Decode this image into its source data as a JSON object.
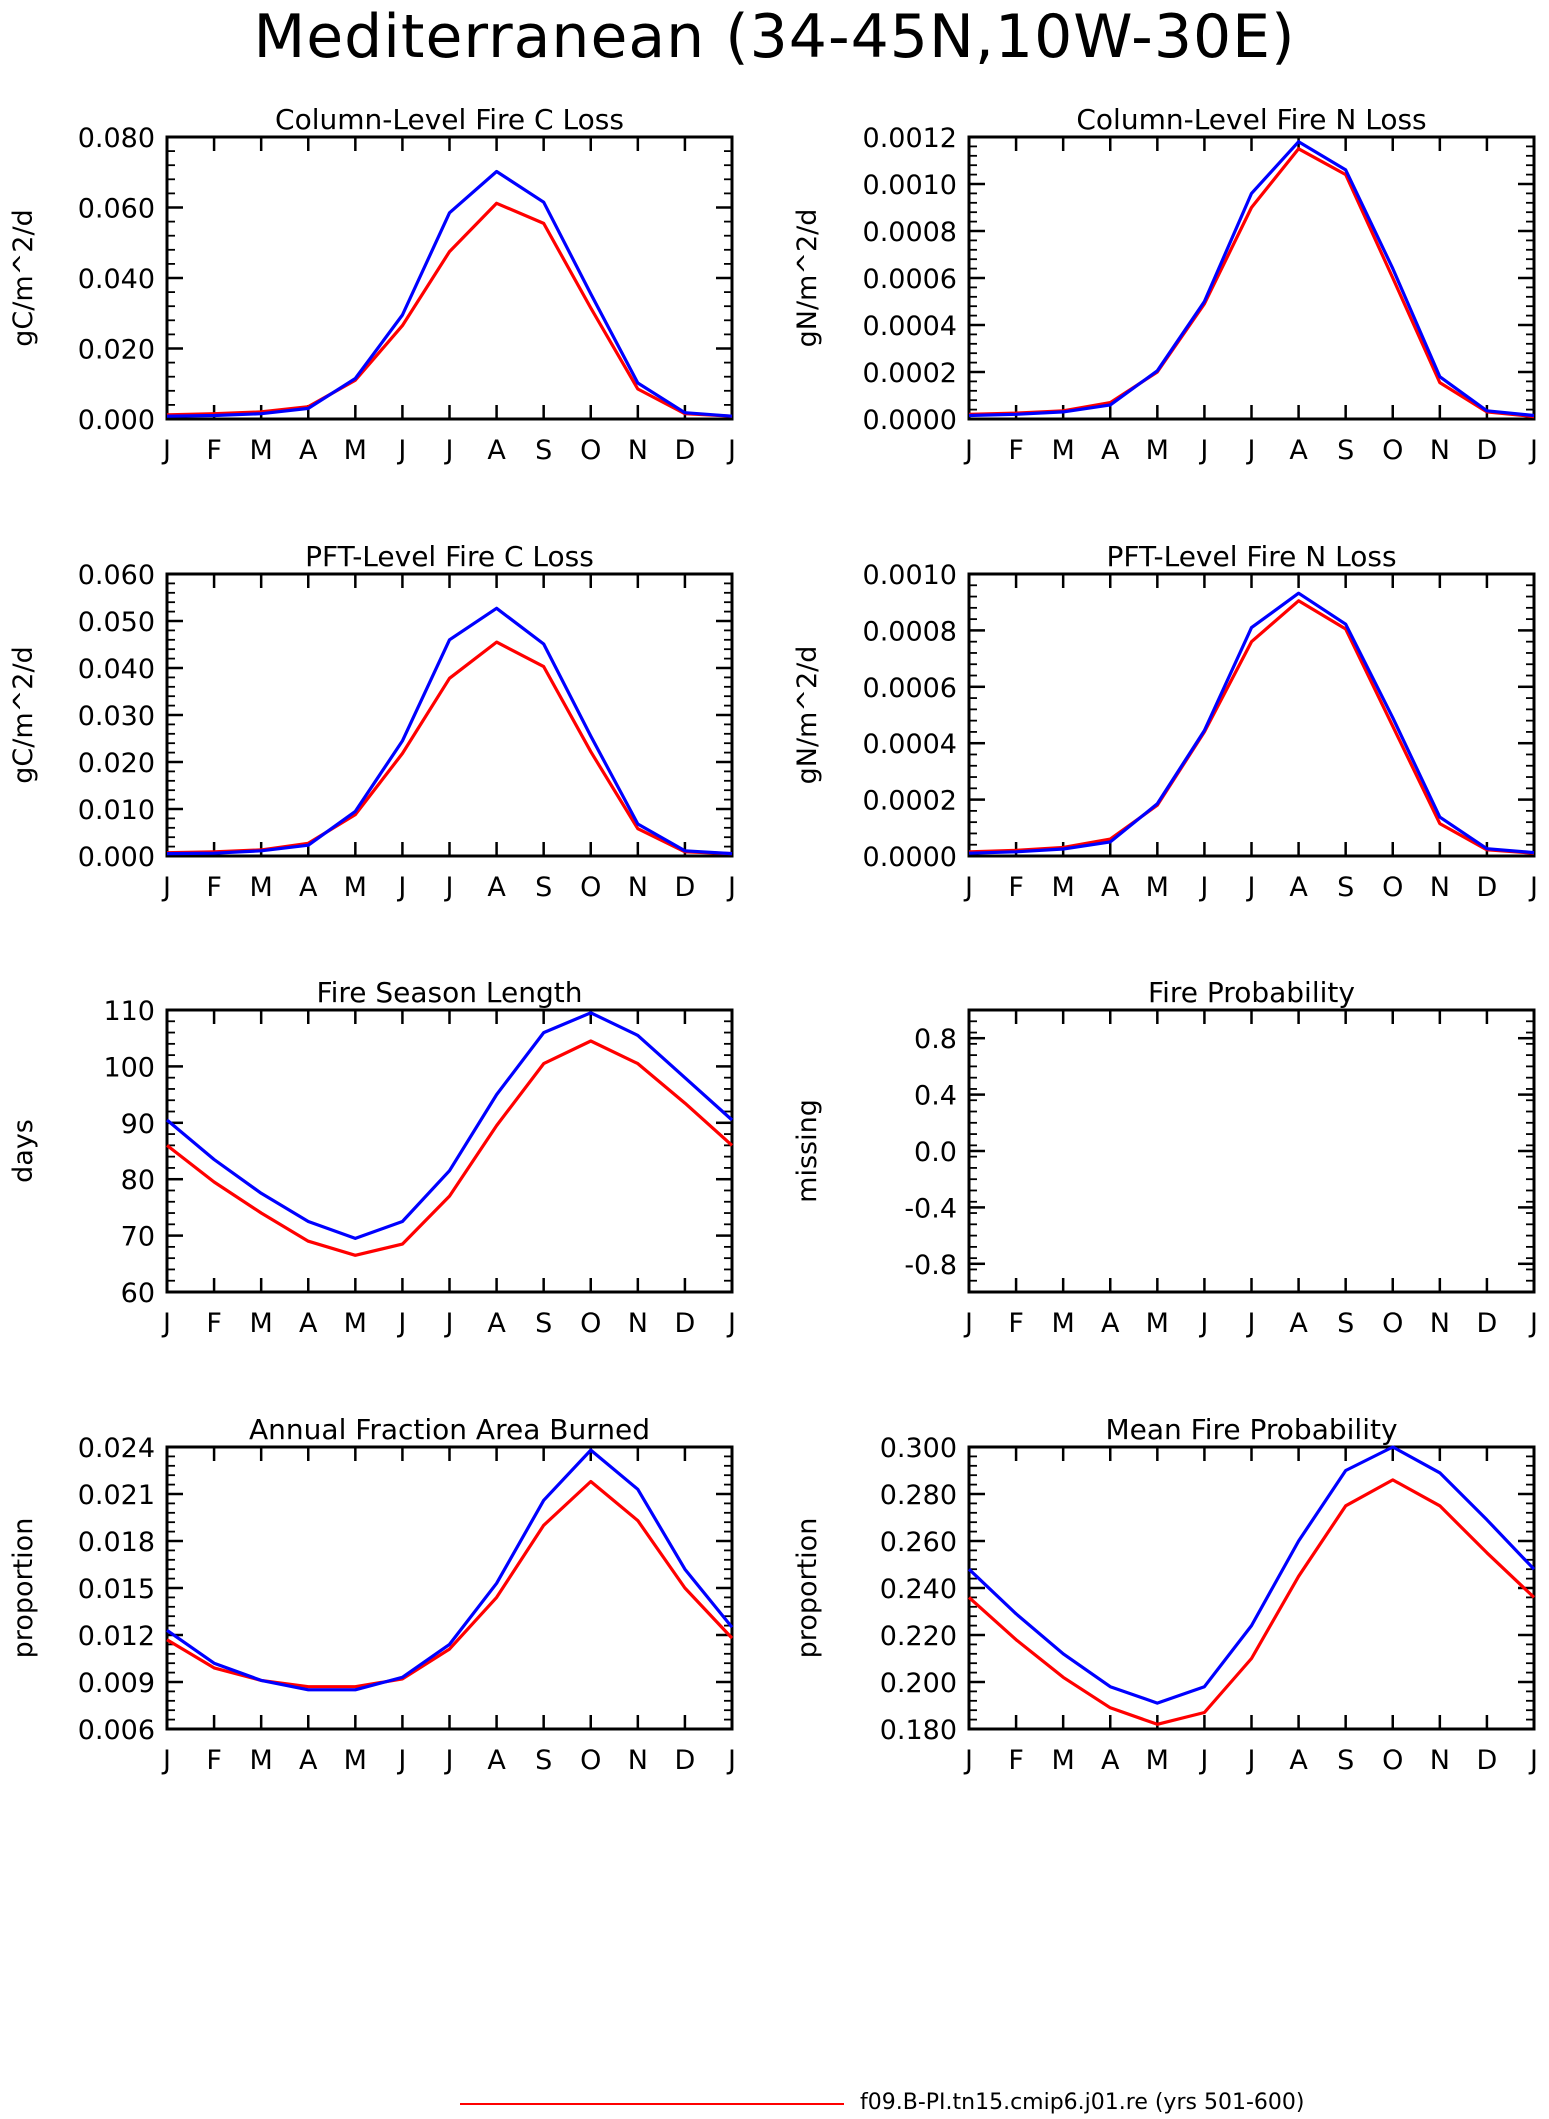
{
  "title": "Mediterranean (34-45N,10W-30E)",
  "legend": {
    "label": "f09.B-PI.tn15.cmip6.j01.re (yrs 501-600)",
    "color": "#ff0000"
  },
  "colors": {
    "red": "#ff0000",
    "blue": "#0000ff"
  },
  "chart_data": [
    {
      "type": "line",
      "title": "Column-Level Fire C Loss",
      "ylabel": "gC/m^2/d",
      "xlabel": "",
      "categories": [
        "J",
        "F",
        "M",
        "A",
        "M",
        "J",
        "J",
        "A",
        "S",
        "O",
        "N",
        "D",
        "J"
      ],
      "ylim": [
        0,
        0.08
      ],
      "yticks": [
        "0.000",
        "0.020",
        "0.040",
        "0.060",
        "0.080"
      ],
      "series": [
        {
          "color": "#ff0000",
          "values": [
            0.0012,
            0.0015,
            0.002,
            0.0035,
            0.011,
            0.0265,
            0.0475,
            0.0612,
            0.0555,
            0.0315,
            0.0085,
            0.0015,
            0.0008
          ]
        },
        {
          "color": "#0000ff",
          "values": [
            0.0008,
            0.001,
            0.0015,
            0.003,
            0.0115,
            0.0295,
            0.0585,
            0.0702,
            0.0615,
            0.0355,
            0.0102,
            0.0018,
            0.0008
          ]
        }
      ]
    },
    {
      "type": "line",
      "title": "Column-Level Fire N Loss",
      "ylabel": "gN/m^2/d",
      "xlabel": "",
      "categories": [
        "J",
        "F",
        "M",
        "A",
        "M",
        "J",
        "J",
        "A",
        "S",
        "O",
        "N",
        "D",
        "J"
      ],
      "ylim": [
        0,
        0.0012
      ],
      "yticks": [
        "0.0000",
        "0.0002",
        "0.0004",
        "0.0006",
        "0.0008",
        "0.0010",
        "0.0012"
      ],
      "series": [
        {
          "color": "#ff0000",
          "values": [
            2e-05,
            2.5e-05,
            3.5e-05,
            7e-05,
            0.0002,
            0.00049,
            0.0009,
            0.00115,
            0.00104,
            0.0006,
            0.000155,
            3e-05,
            1e-05
          ]
        },
        {
          "color": "#0000ff",
          "values": [
            1.5e-05,
            2e-05,
            3e-05,
            6e-05,
            0.000205,
            0.0005,
            0.00096,
            0.00118,
            0.00106,
            0.00064,
            0.00018,
            3.5e-05,
            1.5e-05
          ]
        }
      ]
    },
    {
      "type": "line",
      "title": "PFT-Level Fire C Loss",
      "ylabel": "gC/m^2/d",
      "xlabel": "",
      "categories": [
        "J",
        "F",
        "M",
        "A",
        "M",
        "J",
        "J",
        "A",
        "S",
        "O",
        "N",
        "D",
        "J"
      ],
      "ylim": [
        0,
        0.06
      ],
      "yticks": [
        "0.000",
        "0.010",
        "0.020",
        "0.030",
        "0.040",
        "0.050",
        "0.060"
      ],
      "series": [
        {
          "color": "#ff0000",
          "values": [
            0.0007,
            0.0009,
            0.0013,
            0.0027,
            0.0088,
            0.0218,
            0.0378,
            0.0455,
            0.0403,
            0.0222,
            0.0058,
            0.0009,
            0.0005
          ]
        },
        {
          "color": "#0000ff",
          "values": [
            0.0005,
            0.0006,
            0.0011,
            0.0023,
            0.0095,
            0.0245,
            0.046,
            0.0527,
            0.0451,
            0.0255,
            0.0068,
            0.0011,
            0.0005
          ]
        }
      ]
    },
    {
      "type": "line",
      "title": "PFT-Level Fire N Loss",
      "ylabel": "gN/m^2/d",
      "xlabel": "",
      "categories": [
        "J",
        "F",
        "M",
        "A",
        "M",
        "J",
        "J",
        "A",
        "S",
        "O",
        "N",
        "D",
        "J"
      ],
      "ylim": [
        0,
        0.001
      ],
      "yticks": [
        "0.0000",
        "0.0002",
        "0.0004",
        "0.0006",
        "0.0008",
        "0.0010"
      ],
      "series": [
        {
          "color": "#ff0000",
          "values": [
            1.5e-05,
            2e-05,
            3e-05,
            6e-05,
            0.00018,
            0.00044,
            0.00076,
            0.000905,
            0.000805,
            0.00046,
            0.000115,
            2.2e-05,
            1e-05
          ]
        },
        {
          "color": "#0000ff",
          "values": [
            1e-05,
            1.5e-05,
            2.5e-05,
            5e-05,
            0.000185,
            0.000445,
            0.00081,
            0.000932,
            0.000822,
            0.00049,
            0.000138,
            2.6e-05,
            1.2e-05
          ]
        }
      ]
    },
    {
      "type": "line",
      "title": "Fire Season Length",
      "ylabel": "days",
      "xlabel": "",
      "categories": [
        "J",
        "F",
        "M",
        "A",
        "M",
        "J",
        "J",
        "A",
        "S",
        "O",
        "N",
        "D",
        "J"
      ],
      "ylim": [
        60,
        110
      ],
      "yticks": [
        "60",
        "70",
        "80",
        "90",
        "100",
        "110"
      ],
      "series": [
        {
          "color": "#ff0000",
          "values": [
            86,
            79.5,
            74,
            69,
            66.5,
            68.5,
            77,
            89.5,
            100.5,
            104.5,
            100.5,
            93.5,
            86
          ]
        },
        {
          "color": "#0000ff",
          "values": [
            90.5,
            83.5,
            77.5,
            72.5,
            69.5,
            72.5,
            81.5,
            95,
            106,
            109.5,
            105.5,
            98,
            90.5
          ]
        }
      ]
    },
    {
      "type": "line",
      "title": "Fire Probability",
      "ylabel": "missing",
      "xlabel": "",
      "categories": [
        "J",
        "F",
        "M",
        "A",
        "M",
        "J",
        "J",
        "A",
        "S",
        "O",
        "N",
        "D",
        "J"
      ],
      "ylim": [
        -1,
        1
      ],
      "yticks": [
        "-0.8",
        "-0.4",
        "0.0",
        "0.4",
        "0.8"
      ],
      "series": []
    },
    {
      "type": "line",
      "title": "Annual Fraction Area Burned",
      "ylabel": "proportion",
      "xlabel": "",
      "categories": [
        "J",
        "F",
        "M",
        "A",
        "M",
        "J",
        "J",
        "A",
        "S",
        "O",
        "N",
        "D",
        "J"
      ],
      "ylim": [
        0.006,
        0.024
      ],
      "yticks": [
        "0.006",
        "0.009",
        "0.012",
        "0.015",
        "0.018",
        "0.021",
        "0.024"
      ],
      "series": [
        {
          "color": "#ff0000",
          "values": [
            0.0117,
            0.0099,
            0.0091,
            0.0087,
            0.0087,
            0.0092,
            0.0111,
            0.0144,
            0.019,
            0.0218,
            0.0193,
            0.015,
            0.0118
          ]
        },
        {
          "color": "#0000ff",
          "values": [
            0.0123,
            0.0102,
            0.0091,
            0.0085,
            0.0085,
            0.0093,
            0.0114,
            0.0153,
            0.0206,
            0.0238,
            0.0213,
            0.0162,
            0.0125
          ]
        }
      ]
    },
    {
      "type": "line",
      "title": "Mean Fire Probability",
      "ylabel": "proportion",
      "xlabel": "",
      "categories": [
        "J",
        "F",
        "M",
        "A",
        "M",
        "J",
        "J",
        "A",
        "S",
        "O",
        "N",
        "D",
        "J"
      ],
      "ylim": [
        0.18,
        0.3
      ],
      "yticks": [
        "0.180",
        "0.200",
        "0.220",
        "0.240",
        "0.260",
        "0.280",
        "0.300"
      ],
      "series": [
        {
          "color": "#ff0000",
          "values": [
            0.236,
            0.218,
            0.202,
            0.189,
            0.182,
            0.187,
            0.21,
            0.245,
            0.275,
            0.286,
            0.275,
            0.255,
            0.236
          ]
        },
        {
          "color": "#0000ff",
          "values": [
            0.248,
            0.229,
            0.212,
            0.198,
            0.191,
            0.198,
            0.224,
            0.26,
            0.29,
            0.3,
            0.289,
            0.269,
            0.248
          ]
        }
      ]
    }
  ]
}
